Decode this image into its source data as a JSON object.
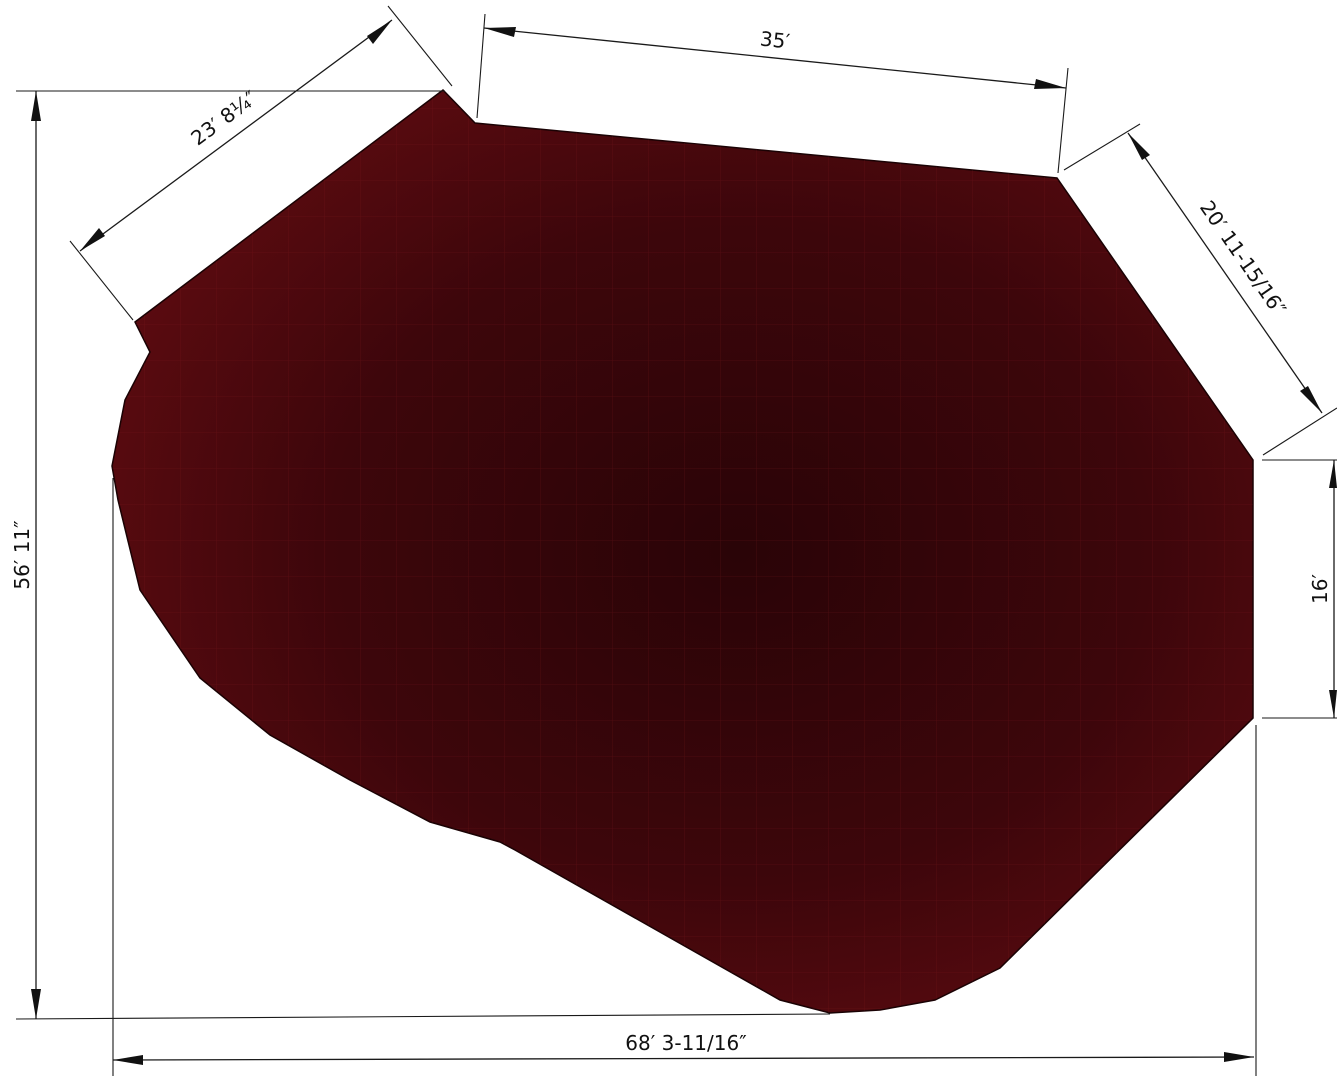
{
  "colors": {
    "shape_fill": "#5c0b10",
    "shape_dark": "#2a0407",
    "grid_line": "#8a1a20",
    "dimension_line": "#111111",
    "background": "#ffffff"
  },
  "dimensions": {
    "top_edge": "35′",
    "upper_left_edge": "23′ 8¼″",
    "upper_right_edge": "20′ 11-15/16″",
    "right_edge": "16′",
    "overall_height": "56′ 11″",
    "overall_width": "68′ 3-11/16″"
  }
}
